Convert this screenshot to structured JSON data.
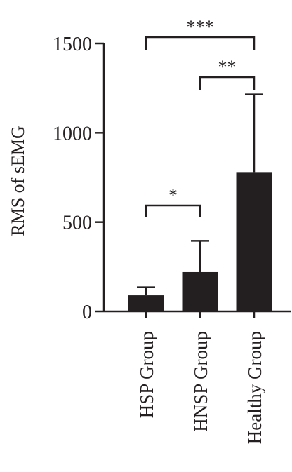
{
  "chart_data": {
    "type": "bar",
    "categories": [
      "HSP Group",
      "HNSP Group",
      "Healthy Group"
    ],
    "values": [
      90,
      220,
      780
    ],
    "errors": [
      45,
      175,
      435
    ],
    "ylabel": "RMS of sEMG",
    "ylim": [
      0,
      1500
    ],
    "yticks": [
      "0",
      "500",
      "1000",
      "1500"
    ],
    "significance": [
      {
        "from": 0,
        "to": 1,
        "label": "*"
      },
      {
        "from": 1,
        "to": 2,
        "label": "**"
      },
      {
        "from": 0,
        "to": 2,
        "label": "***"
      }
    ],
    "colors": {
      "bar": "#231f20",
      "axis": "#231f20",
      "text": "#231f20"
    }
  }
}
